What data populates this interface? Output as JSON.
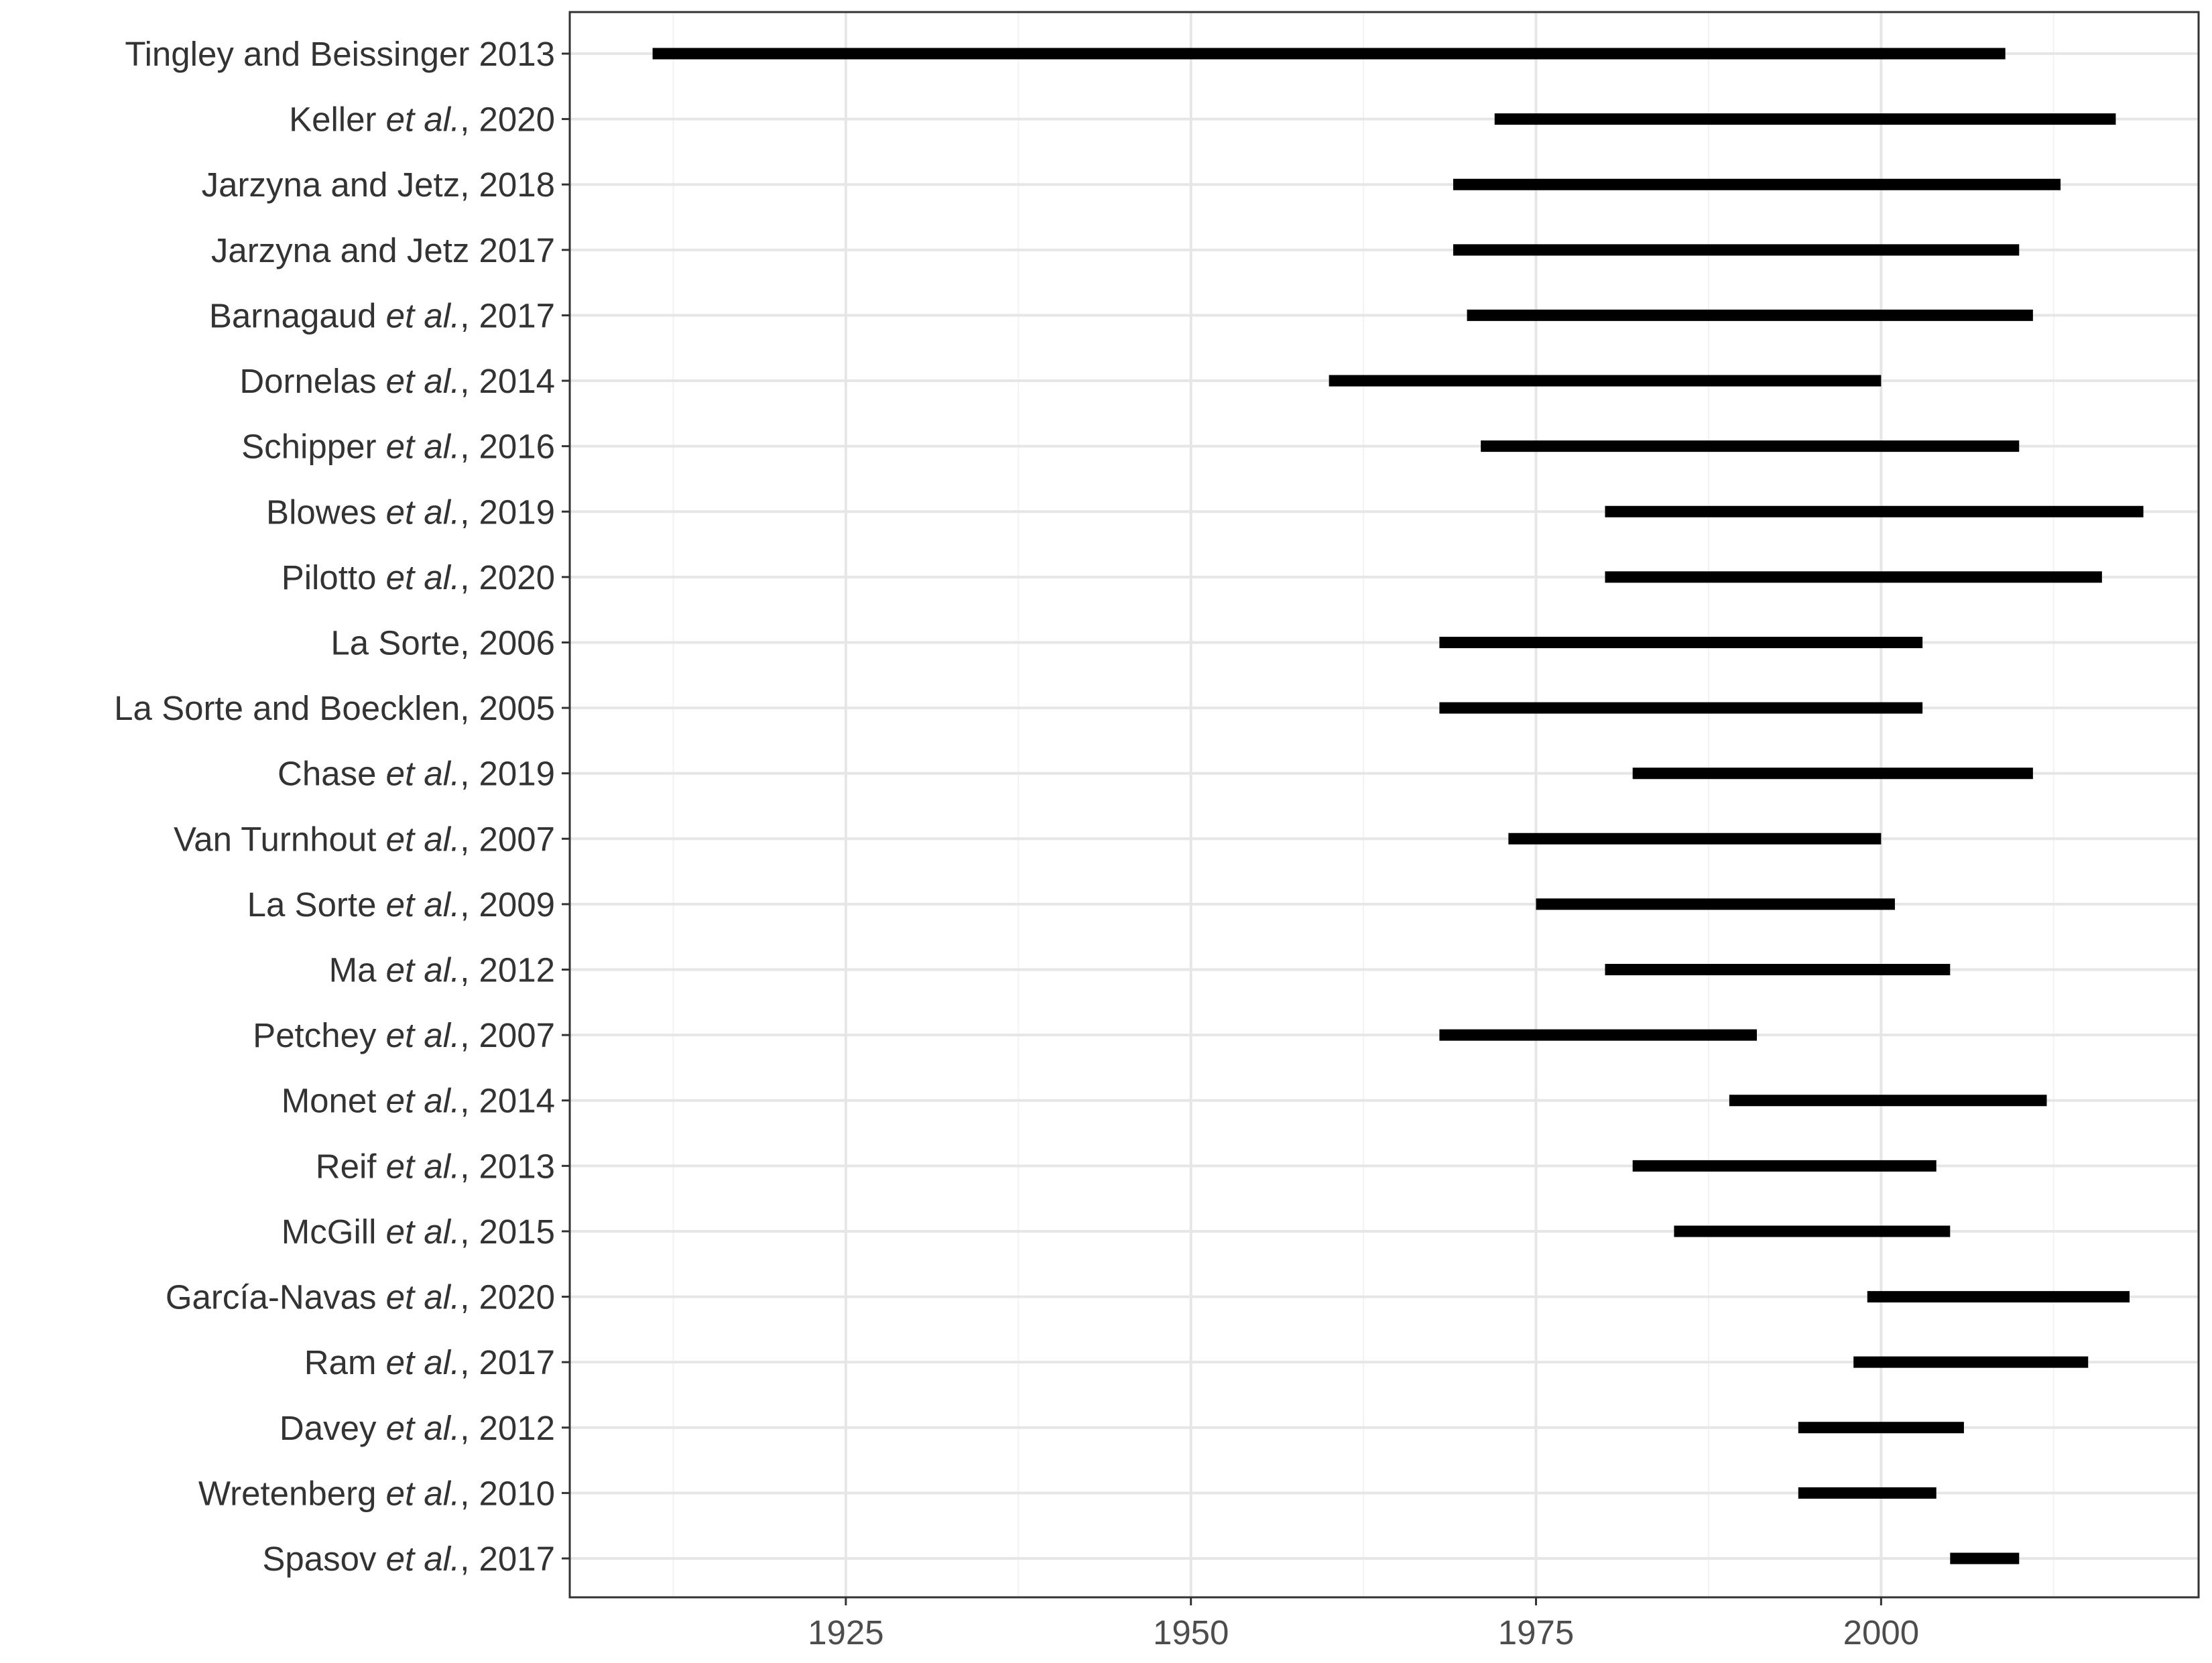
{
  "chart_data": {
    "type": "range-bar",
    "title": "",
    "xlabel": "",
    "ylabel": "",
    "xlim": [
      1905,
      2023
    ],
    "x_ticks": [
      1925,
      1950,
      1975,
      2000
    ],
    "grid": true,
    "bar_color": "#000000",
    "studies": [
      {
        "name": "Tingley and Beissinger 2013",
        "parts": [
          {
            "t": "Tingley and Beissinger 2013",
            "i": false
          }
        ],
        "start": 1911,
        "end": 2009
      },
      {
        "name": "Keller et al., 2020",
        "parts": [
          {
            "t": "Keller ",
            "i": false
          },
          {
            "t": "et al.",
            "i": true
          },
          {
            "t": ", 2020",
            "i": false
          }
        ],
        "start": 1972,
        "end": 2017
      },
      {
        "name": "Jarzyna and Jetz, 2018",
        "parts": [
          {
            "t": "Jarzyna and Jetz, 2018",
            "i": false
          }
        ],
        "start": 1969,
        "end": 2013
      },
      {
        "name": "Jarzyna and Jetz 2017",
        "parts": [
          {
            "t": "Jarzyna and Jetz 2017",
            "i": false
          }
        ],
        "start": 1969,
        "end": 2010
      },
      {
        "name": "Barnagaud et al., 2017",
        "parts": [
          {
            "t": "Barnagaud ",
            "i": false
          },
          {
            "t": "et al.",
            "i": true
          },
          {
            "t": ", 2017",
            "i": false
          }
        ],
        "start": 1970,
        "end": 2011
      },
      {
        "name": "Dornelas et al., 2014",
        "parts": [
          {
            "t": "Dornelas ",
            "i": false
          },
          {
            "t": "et al.",
            "i": true
          },
          {
            "t": ", 2014",
            "i": false
          }
        ],
        "start": 1960,
        "end": 2000
      },
      {
        "name": "Schipper et al., 2016",
        "parts": [
          {
            "t": "Schipper ",
            "i": false
          },
          {
            "t": "et al.",
            "i": true
          },
          {
            "t": ", 2016",
            "i": false
          }
        ],
        "start": 1971,
        "end": 2010
      },
      {
        "name": "Blowes et al., 2019",
        "parts": [
          {
            "t": "Blowes ",
            "i": false
          },
          {
            "t": "et al.",
            "i": true
          },
          {
            "t": ", 2019",
            "i": false
          }
        ],
        "start": 1980,
        "end": 2019
      },
      {
        "name": "Pilotto et al., 2020",
        "parts": [
          {
            "t": "Pilotto ",
            "i": false
          },
          {
            "t": "et al.",
            "i": true
          },
          {
            "t": ", 2020",
            "i": false
          }
        ],
        "start": 1980,
        "end": 2016
      },
      {
        "name": "La Sorte, 2006",
        "parts": [
          {
            "t": "La Sorte, 2006",
            "i": false
          }
        ],
        "start": 1968,
        "end": 2003
      },
      {
        "name": "La Sorte and Boecklen, 2005",
        "parts": [
          {
            "t": "La Sorte and Boecklen, 2005",
            "i": false
          }
        ],
        "start": 1968,
        "end": 2003
      },
      {
        "name": "Chase et al., 2019",
        "parts": [
          {
            "t": "Chase ",
            "i": false
          },
          {
            "t": "et al.",
            "i": true
          },
          {
            "t": ", 2019",
            "i": false
          }
        ],
        "start": 1982,
        "end": 2011
      },
      {
        "name": "Van Turnhout et al., 2007",
        "parts": [
          {
            "t": "Van Turnhout ",
            "i": false
          },
          {
            "t": "et al.",
            "i": true
          },
          {
            "t": ", 2007",
            "i": false
          }
        ],
        "start": 1973,
        "end": 2000
      },
      {
        "name": "La Sorte et al., 2009",
        "parts": [
          {
            "t": "La Sorte ",
            "i": false
          },
          {
            "t": "et al.",
            "i": true
          },
          {
            "t": ", 2009",
            "i": false
          }
        ],
        "start": 1975,
        "end": 2001
      },
      {
        "name": "Ma et al., 2012",
        "parts": [
          {
            "t": "Ma ",
            "i": false
          },
          {
            "t": "et al.",
            "i": true
          },
          {
            "t": ", 2012",
            "i": false
          }
        ],
        "start": 1980,
        "end": 2005
      },
      {
        "name": "Petchey et al., 2007",
        "parts": [
          {
            "t": "Petchey ",
            "i": false
          },
          {
            "t": "et al.",
            "i": true
          },
          {
            "t": ", 2007",
            "i": false
          }
        ],
        "start": 1968,
        "end": 1991
      },
      {
        "name": "Monet et al., 2014",
        "parts": [
          {
            "t": "Monet ",
            "i": false
          },
          {
            "t": "et al.",
            "i": true
          },
          {
            "t": ", 2014",
            "i": false
          }
        ],
        "start": 1989,
        "end": 2012
      },
      {
        "name": "Reif et al., 2013",
        "parts": [
          {
            "t": "Reif ",
            "i": false
          },
          {
            "t": "et al.",
            "i": true
          },
          {
            "t": ", 2013",
            "i": false
          }
        ],
        "start": 1982,
        "end": 2004
      },
      {
        "name": "McGill et al., 2015",
        "parts": [
          {
            "t": "McGill ",
            "i": false
          },
          {
            "t": "et al.",
            "i": true
          },
          {
            "t": ", 2015",
            "i": false
          }
        ],
        "start": 1985,
        "end": 2005
      },
      {
        "name": "García-Navas et al., 2020",
        "parts": [
          {
            "t": "García-Navas ",
            "i": false
          },
          {
            "t": "et al.",
            "i": true
          },
          {
            "t": ", 2020",
            "i": false
          }
        ],
        "start": 1999,
        "end": 2018
      },
      {
        "name": "Ram et al., 2017",
        "parts": [
          {
            "t": "Ram ",
            "i": false
          },
          {
            "t": "et al.",
            "i": true
          },
          {
            "t": ", 2017",
            "i": false
          }
        ],
        "start": 1998,
        "end": 2015
      },
      {
        "name": "Davey et al., 2012",
        "parts": [
          {
            "t": "Davey ",
            "i": false
          },
          {
            "t": "et al.",
            "i": true
          },
          {
            "t": ", 2012",
            "i": false
          }
        ],
        "start": 1994,
        "end": 2006
      },
      {
        "name": "Wretenberg et al., 2010",
        "parts": [
          {
            "t": "Wretenberg ",
            "i": false
          },
          {
            "t": "et al.",
            "i": true
          },
          {
            "t": ", 2010",
            "i": false
          }
        ],
        "start": 1994,
        "end": 2004
      },
      {
        "name": "Spasov et al., 2017",
        "parts": [
          {
            "t": "Spasov ",
            "i": false
          },
          {
            "t": "et al.",
            "i": true
          },
          {
            "t": ", 2017",
            "i": false
          }
        ],
        "start": 2005,
        "end": 2010
      }
    ]
  }
}
